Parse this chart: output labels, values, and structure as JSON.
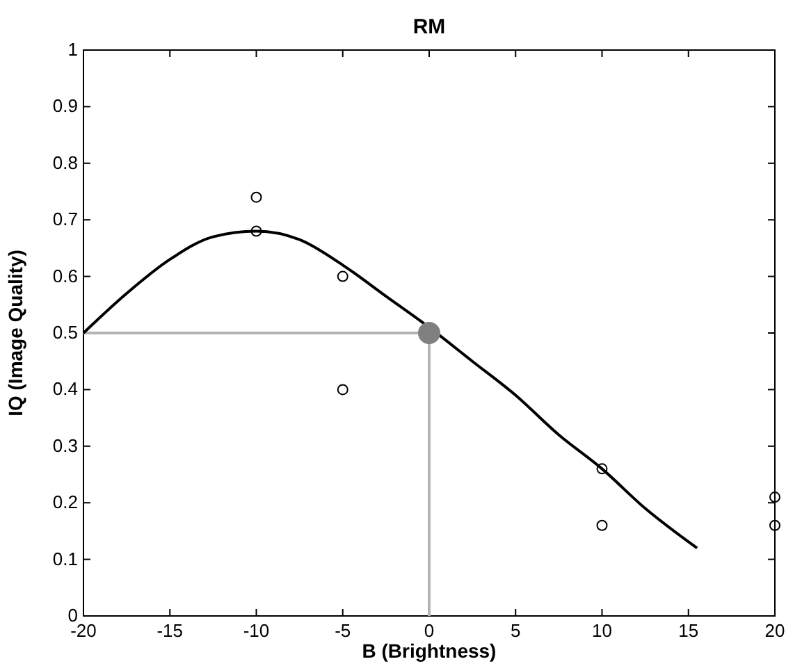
{
  "chart_data": {
    "type": "line",
    "title": "RM",
    "xlabel": "B (Brightness)",
    "ylabel": "IQ (Image Quality)",
    "xlim": [
      -20,
      20
    ],
    "ylim": [
      0,
      1
    ],
    "xticks": [
      -20,
      -15,
      -10,
      -5,
      0,
      5,
      10,
      15,
      20
    ],
    "yticks": [
      0,
      0.1,
      0.2,
      0.3,
      0.4,
      0.5,
      0.6,
      0.7,
      0.8,
      0.9,
      1
    ],
    "grid": false,
    "series": [
      {
        "type": "line",
        "color": "#b4b4b4",
        "x": [
          -20,
          0,
          0
        ],
        "values": [
          0.5,
          0.5,
          0
        ]
      },
      {
        "color": "#000000",
        "x": [
          -20,
          -17.5,
          -15,
          -12.5,
          -10,
          -7.5,
          -5,
          -2.5,
          0,
          2.5,
          5,
          7.5,
          10,
          12.5,
          15.5
        ],
        "values": [
          0.5,
          0.57,
          0.63,
          0.67,
          0.68,
          0.665,
          0.62,
          0.565,
          0.51,
          0.45,
          0.39,
          0.32,
          0.26,
          0.19,
          0.12
        ]
      },
      {
        "type": "scatter",
        "color": "#000000",
        "marker": "circle",
        "x": [
          -10,
          -10,
          -5,
          -5,
          10,
          10,
          20,
          20
        ],
        "values": [
          0.74,
          0.68,
          0.6,
          0.4,
          0.26,
          0.16,
          0.21,
          0.16
        ]
      },
      {
        "type": "bubble",
        "color": "#808080",
        "x": [
          0
        ],
        "values": [
          0.5
        ],
        "sizes": [
          1
        ]
      }
    ]
  }
}
